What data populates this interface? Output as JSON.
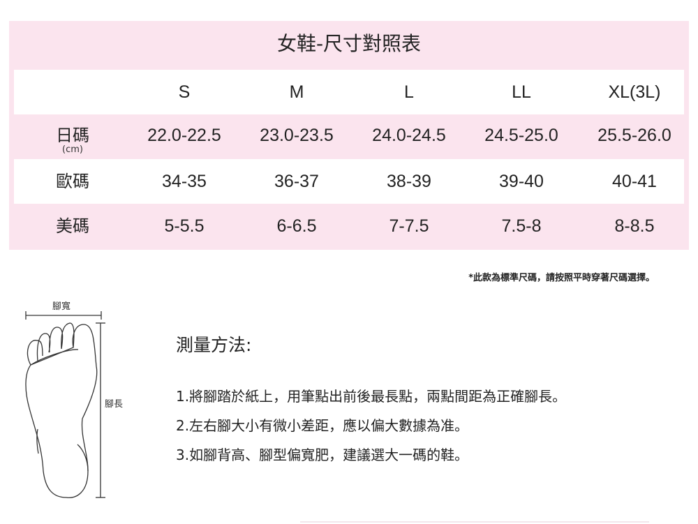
{
  "title": "女鞋-尺寸對照表",
  "sizes": [
    "S",
    "M",
    "L",
    "LL",
    "XL(3L)"
  ],
  "rows": [
    {
      "label": "日碼",
      "unit": "(cm)",
      "values": [
        "22.0-22.5",
        "23.0-23.5",
        "24.0-24.5",
        "24.5-25.0",
        "25.5-26.0"
      ]
    },
    {
      "label": "歐碼",
      "values": [
        "34-35",
        "36-37",
        "38-39",
        "39-40",
        "40-41"
      ]
    },
    {
      "label": "美碼",
      "values": [
        "5-5.5",
        "6-6.5",
        "7-7.5",
        "7.5-8",
        "8-8.5"
      ]
    }
  ],
  "note": "*此款為標準尺碼，請按照平時穿著尺碼選擇。",
  "diagram": {
    "width_label": "腳寬",
    "length_label": "腳長"
  },
  "method": {
    "title": "測量方法:",
    "steps": [
      "1.將腳踏於紙上，用筆點出前後最長點，兩點間距為正確腳長。",
      "2.左右腳大小有微小差距，應以偏大數據為准。",
      "3.如腳背高、腳型偏寬肥，建議選大一碼的鞋。"
    ]
  },
  "colors": {
    "panel": "#fbe4ee",
    "row_white": "#ffffff",
    "text": "#222222"
  }
}
